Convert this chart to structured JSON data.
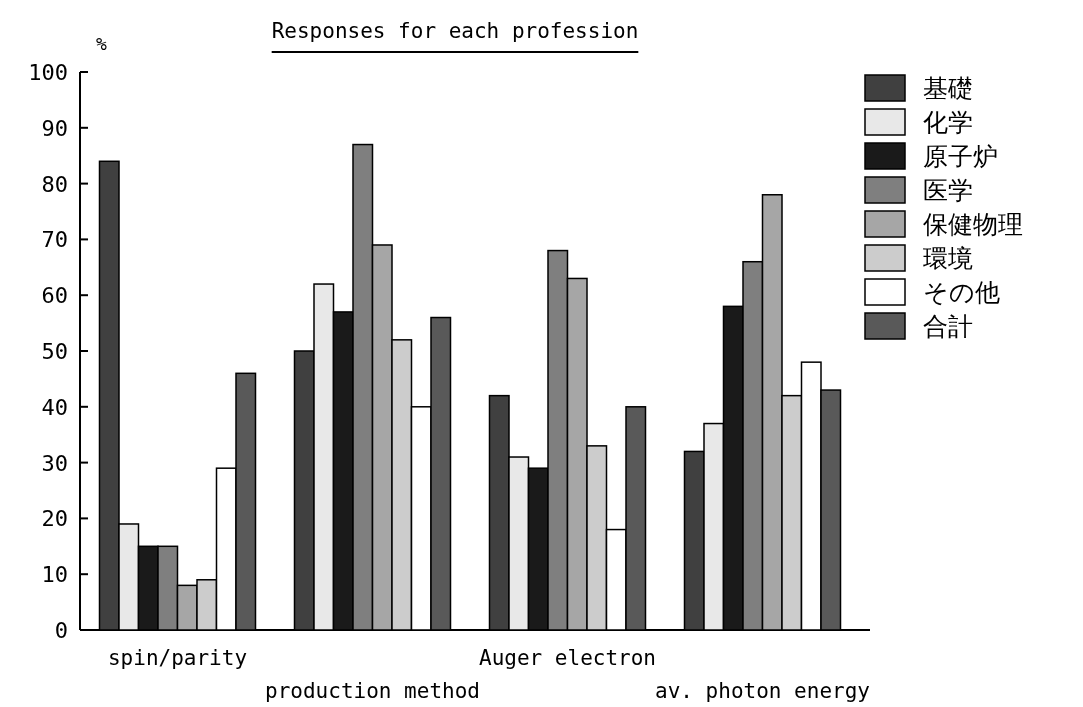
{
  "chart_data": {
    "type": "bar",
    "title": "Responses for each profession",
    "ylabel": "%",
    "categories": [
      "spin/parity",
      "production method",
      "Auger electron",
      "av. photon energy"
    ],
    "series": [
      {
        "name": "基礎",
        "color": "#404040",
        "values": [
          84,
          50,
          42,
          32
        ]
      },
      {
        "name": "化学",
        "color": "#e8e8e8",
        "values": [
          19,
          62,
          31,
          37
        ]
      },
      {
        "name": "原子炉",
        "color": "#1a1a1a",
        "values": [
          15,
          57,
          29,
          58
        ]
      },
      {
        "name": "医学",
        "color": "#7f7f7f",
        "values": [
          15,
          87,
          68,
          66
        ]
      },
      {
        "name": "保健物理",
        "color": "#a6a6a6",
        "values": [
          8,
          69,
          63,
          78
        ]
      },
      {
        "name": "環境",
        "color": "#cccccc",
        "values": [
          9,
          52,
          33,
          42
        ]
      },
      {
        "name": "その他",
        "color": "#ffffff",
        "values": [
          29,
          40,
          18,
          48
        ]
      },
      {
        "name": "合計",
        "color": "#595959",
        "values": [
          46,
          56,
          40,
          43
        ]
      }
    ],
    "ylim": [
      0,
      100
    ],
    "yticks": [
      0,
      10,
      20,
      30,
      40,
      50,
      60,
      70,
      80,
      90,
      100
    ],
    "grid": false,
    "legend": "right"
  }
}
